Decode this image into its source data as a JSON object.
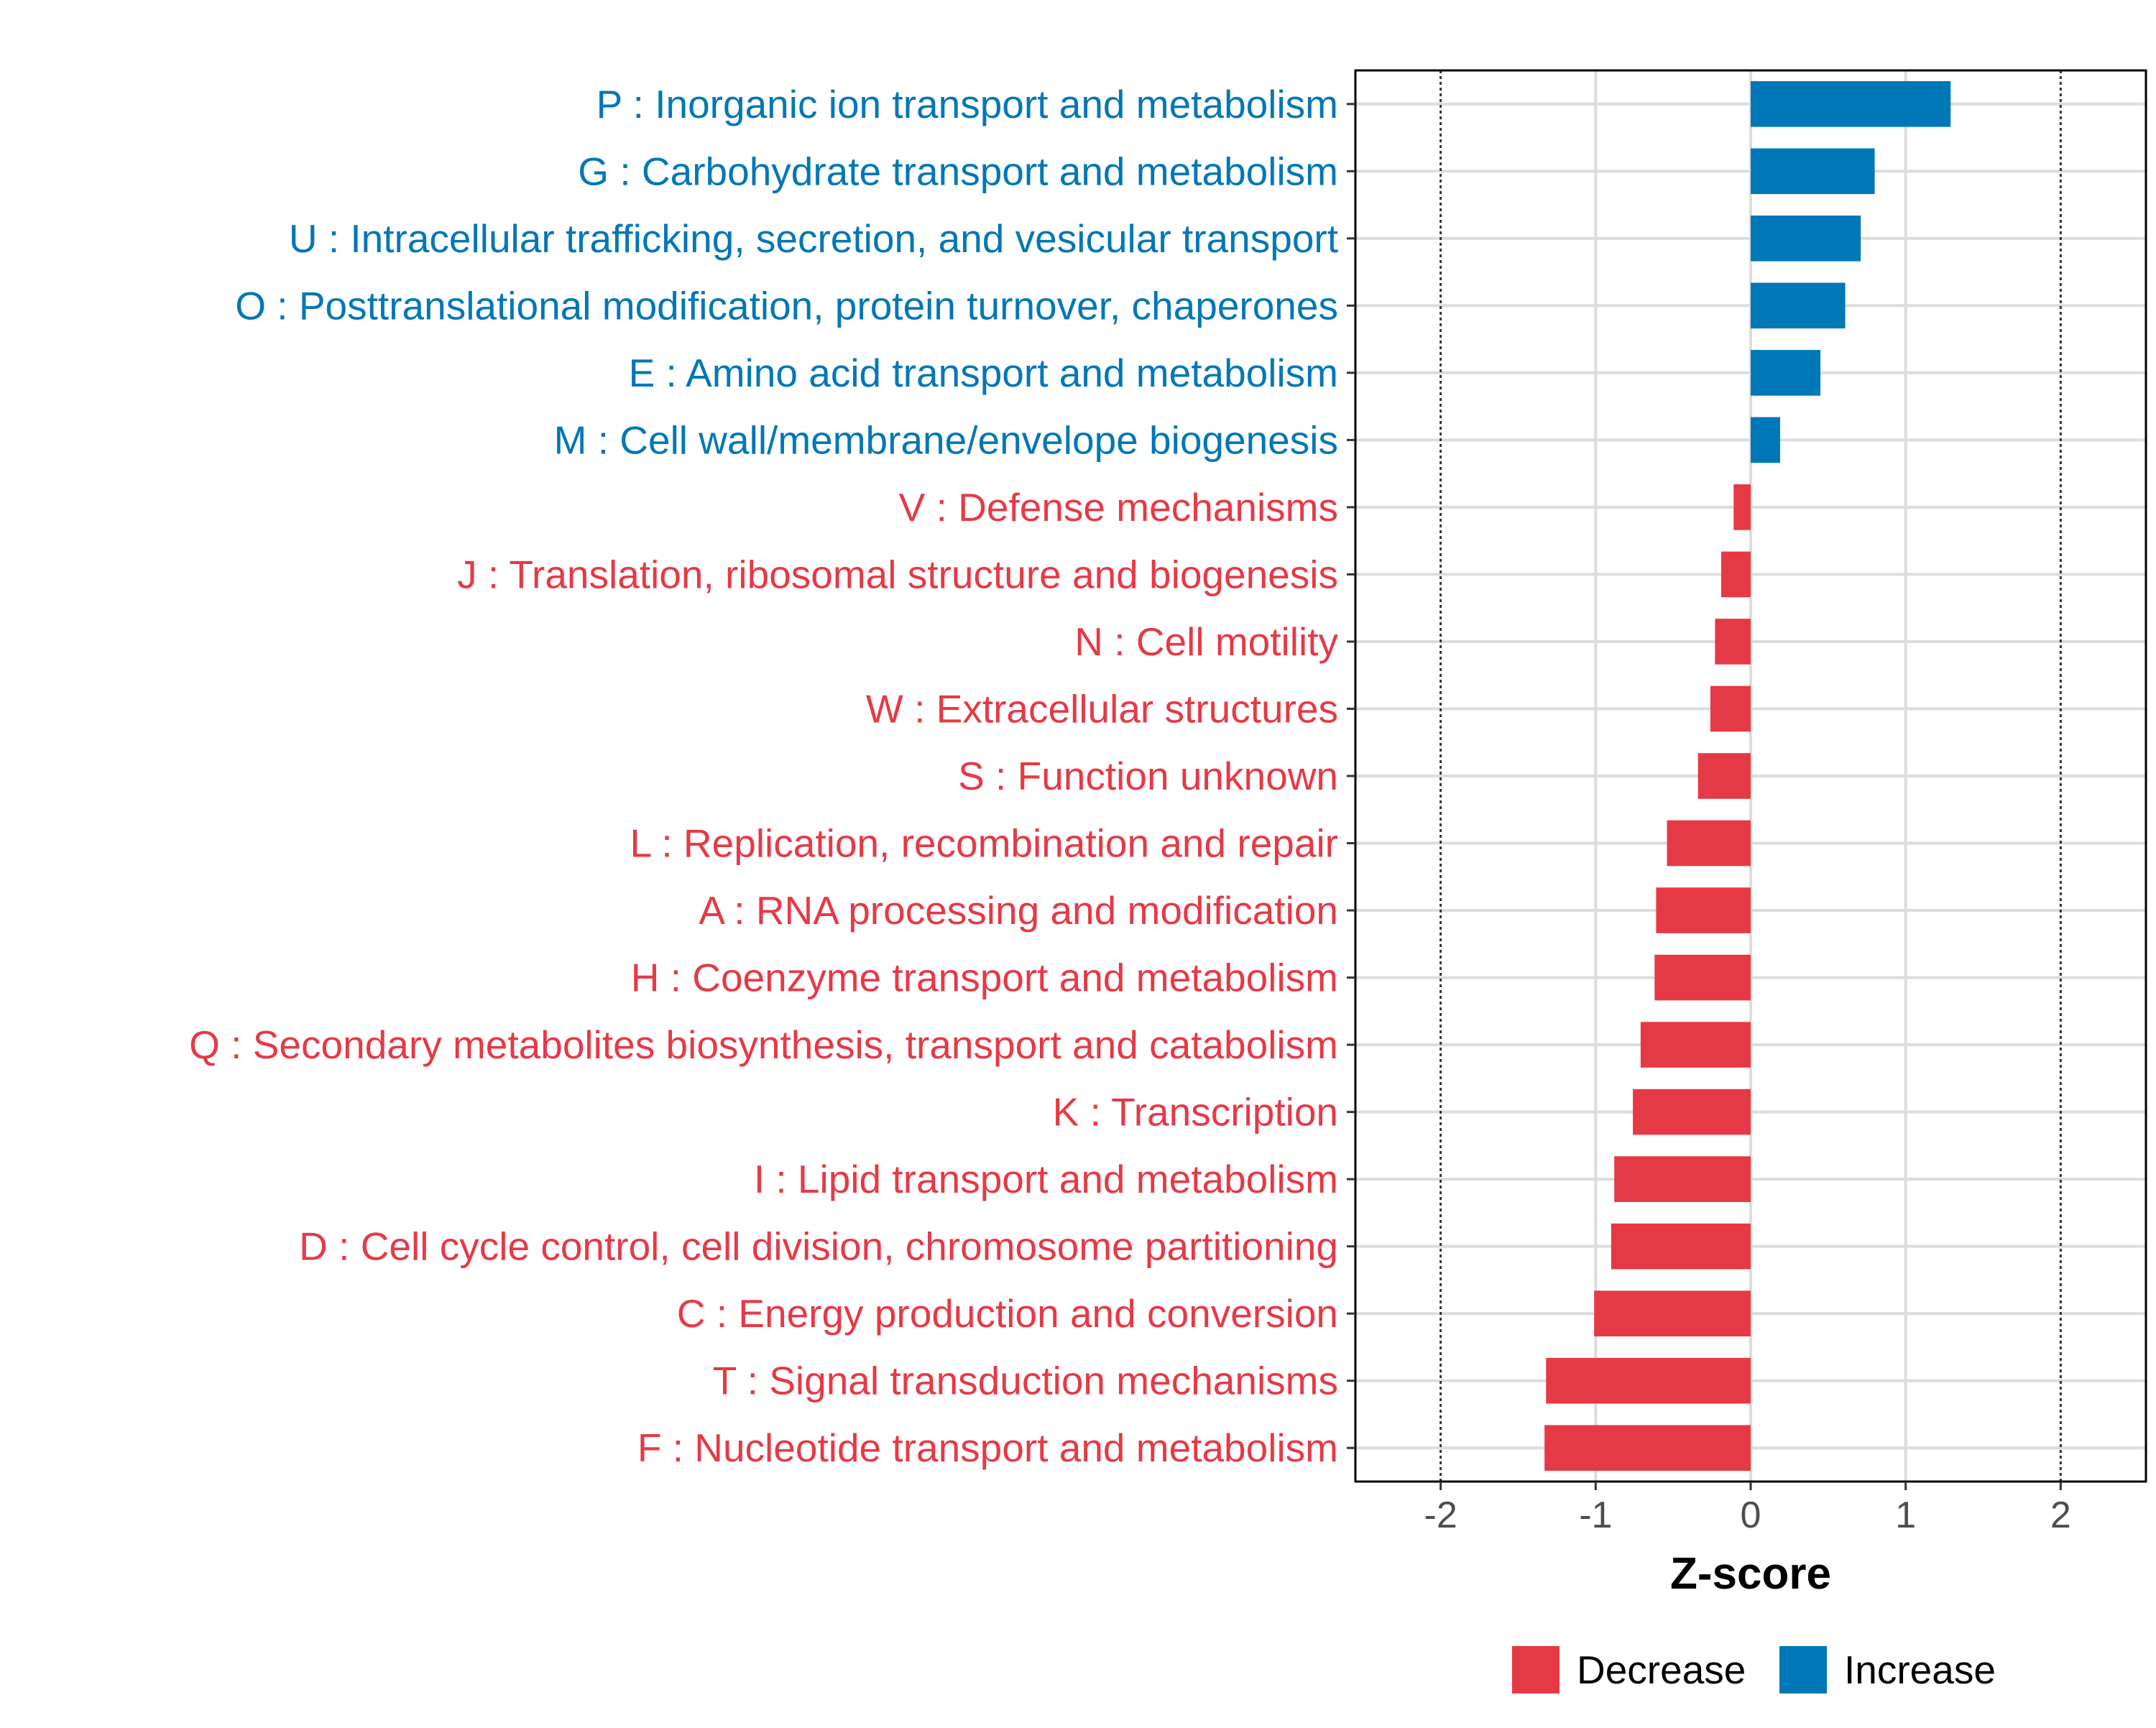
{
  "chart_data": {
    "type": "bar",
    "orientation": "horizontal",
    "xlabel": "Z-score",
    "ylabel": "",
    "xlim": [
      -2.55,
      2.55
    ],
    "xticks": [
      -2,
      -1,
      0,
      1,
      2
    ],
    "xtick_labels": [
      "-2",
      "-1",
      "0",
      "1",
      "2"
    ],
    "reference_lines": [
      -2,
      2
    ],
    "grid": true,
    "legend_position": "bottom-right",
    "colors": {
      "Decrease": "#E63946",
      "Increase": "#0077B6"
    },
    "legend": [
      {
        "label": "Decrease",
        "color": "#E63946"
      },
      {
        "label": "Increase",
        "color": "#0077B6"
      }
    ],
    "categories": [
      "P : Inorganic ion transport and metabolism",
      "G : Carbohydrate transport and metabolism",
      "U : Intracellular trafficking, secretion, and vesicular transport",
      "O : Posttranslational modification, protein turnover, chaperones",
      "E : Amino acid transport and metabolism",
      "M : Cell wall/membrane/envelope biogenesis",
      "V : Defense mechanisms",
      "J : Translation, ribosomal structure and biogenesis",
      "N : Cell motility",
      "W : Extracellular structures",
      "S : Function unknown",
      "L : Replication, recombination and repair",
      "A : RNA processing and modification",
      "H : Coenzyme transport and metabolism",
      "Q : Secondary metabolites biosynthesis, transport and catabolism",
      "K : Transcription",
      "I : Lipid transport and metabolism",
      "D : Cell cycle control, cell division, chromosome partitioning",
      "C : Energy production and conversion",
      "T : Signal transduction mechanisms",
      "F : Nucleotide transport and metabolism"
    ],
    "values": [
      1.29,
      0.8,
      0.71,
      0.61,
      0.45,
      0.19,
      -0.11,
      -0.19,
      -0.23,
      -0.26,
      -0.34,
      -0.54,
      -0.61,
      -0.62,
      -0.71,
      -0.76,
      -0.88,
      -0.9,
      -1.01,
      -1.32,
      -1.33
    ],
    "groups": [
      "Increase",
      "Increase",
      "Increase",
      "Increase",
      "Increase",
      "Increase",
      "Decrease",
      "Decrease",
      "Decrease",
      "Decrease",
      "Decrease",
      "Decrease",
      "Decrease",
      "Decrease",
      "Decrease",
      "Decrease",
      "Decrease",
      "Decrease",
      "Decrease",
      "Decrease",
      "Decrease"
    ]
  }
}
